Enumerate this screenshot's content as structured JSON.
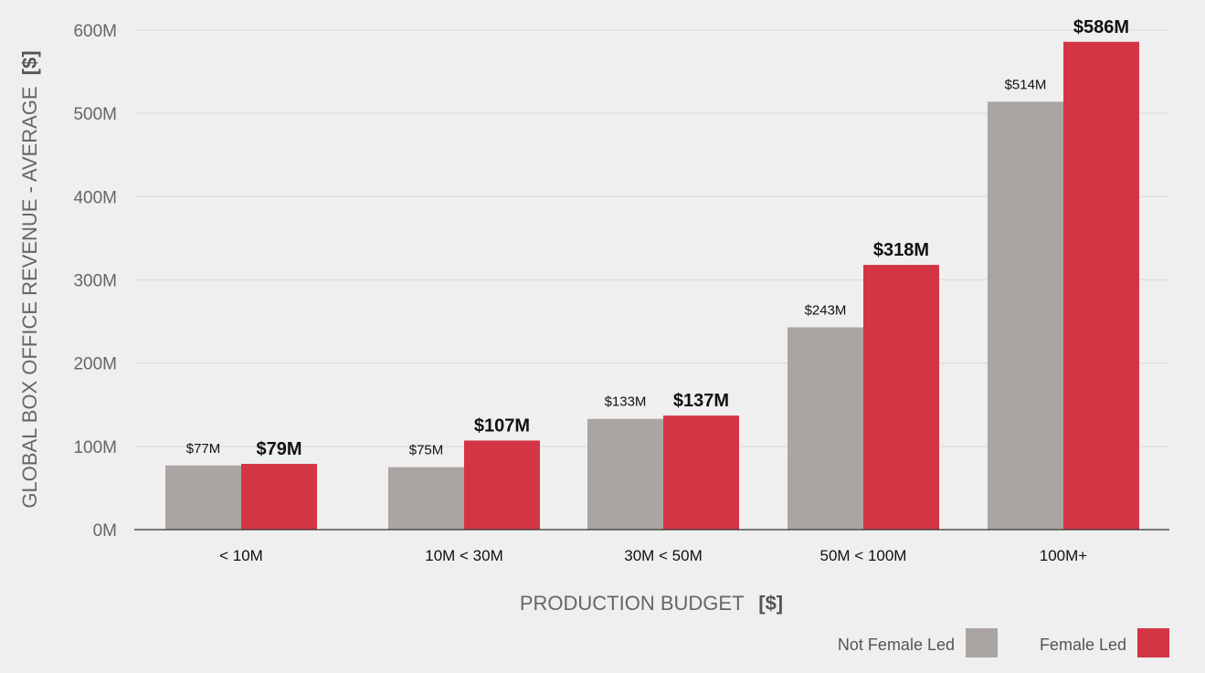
{
  "chart_data": {
    "type": "bar",
    "categories": [
      "< 10M",
      "10M < 30M",
      "30M < 50M",
      "50M < 100M",
      "100M+"
    ],
    "series": [
      {
        "name": "Not Female Led",
        "values": [
          77,
          75,
          133,
          243,
          514
        ],
        "labels": [
          "$77M",
          "$75M",
          "$133M",
          "$243M",
          "$514M"
        ],
        "color": "#aaa5a2"
      },
      {
        "name": "Female Led",
        "values": [
          79,
          107,
          137,
          318,
          586
        ],
        "labels": [
          "$79M",
          "$107M",
          "$137M",
          "$318M",
          "$586M"
        ],
        "color": "#d43544"
      }
    ],
    "y_ticks": [
      0,
      100,
      200,
      300,
      400,
      500,
      600
    ],
    "y_tick_labels": [
      "0M",
      "100M",
      "200M",
      "300M",
      "400M",
      "500M",
      "600M"
    ],
    "ylim": [
      0,
      600
    ],
    "ylabel": "GLOBAL BOX OFFICE REVENUE - AVERAGE",
    "ylabel_unit": "[$]",
    "xlabel": "PRODUCTION BUDGET",
    "xlabel_unit": "[$]",
    "grid": true,
    "legend_position": "bottom-right"
  }
}
